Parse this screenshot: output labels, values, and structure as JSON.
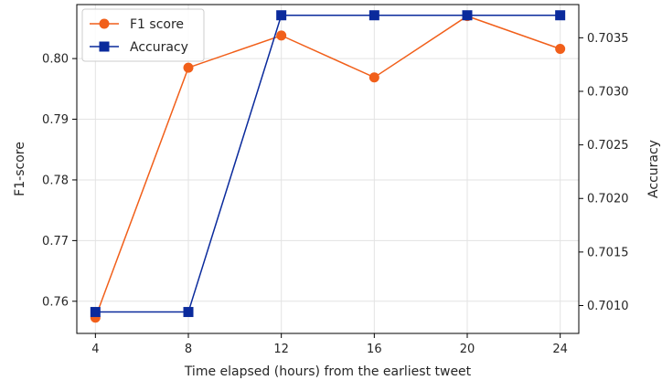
{
  "chart_data": {
    "type": "line",
    "title": "",
    "xlabel": "Time elapsed (hours) from the earliest tweet",
    "ylabel": "F1-score",
    "y2label": "Accuracy",
    "x": [
      4,
      8,
      12,
      16,
      20,
      24
    ],
    "xticks": [
      "4",
      "8",
      "12",
      "16",
      "20",
      "24"
    ],
    "xlim": [
      3.2,
      24.8
    ],
    "ylim": [
      0.7547,
      0.8089
    ],
    "y2lim": [
      0.70074,
      0.70381
    ],
    "yticks": [
      "0.76",
      "0.77",
      "0.78",
      "0.79",
      "0.80"
    ],
    "y2ticks": [
      "0.7010",
      "0.7015",
      "0.7020",
      "0.7025",
      "0.7030",
      "0.7035"
    ],
    "grid": true,
    "legend_position": "top-left",
    "series": [
      {
        "name": "F1 score",
        "axis": "left",
        "marker": "circle",
        "color": "#f15f1a",
        "values": [
          0.7573,
          0.7985,
          0.8038,
          0.7969,
          0.807,
          0.8016
        ]
      },
      {
        "name": "Accuracy",
        "axis": "right",
        "marker": "square",
        "color": "#0a2a9c",
        "values": [
          0.70094,
          0.70094,
          0.70371,
          0.70371,
          0.70371,
          0.70371
        ]
      }
    ]
  }
}
